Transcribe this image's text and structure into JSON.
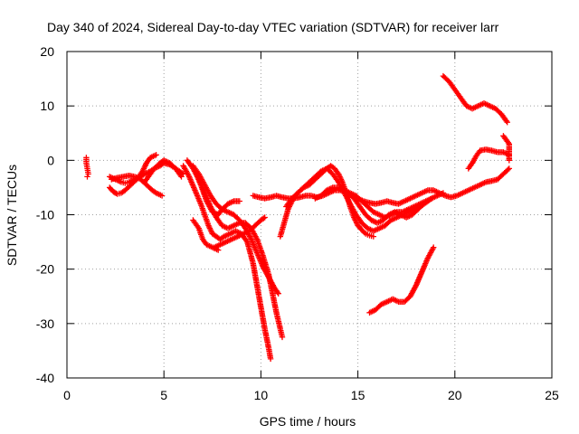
{
  "chart_data": {
    "type": "scatter",
    "title": "Day 340 of 2024, Sidereal Day-to-day VTEC variation (SDTVAR) for receiver larr",
    "xlabel": "GPS time / hours",
    "ylabel": "SDTVAR / TECUs",
    "xlim": [
      0,
      25
    ],
    "ylim": [
      -40,
      20
    ],
    "xticks": [
      "0",
      "5",
      "10",
      "15",
      "20",
      "25"
    ],
    "yticks": [
      "-40",
      "-30",
      "-20",
      "-10",
      "0",
      "10",
      "20"
    ],
    "grid": true,
    "legend": "none",
    "marker": "plus",
    "color": "#ff0000",
    "series": [
      {
        "x": [
          1.0,
          1.0,
          1.05,
          1.1,
          1.05
        ],
        "y": [
          0.5,
          -0.5,
          -1.5,
          -2.5,
          -3.0
        ]
      },
      {
        "x": [
          2.2,
          2.5,
          2.8,
          3.0,
          3.2,
          3.5,
          3.8,
          4.0,
          4.3,
          4.5,
          4.8,
          5.0,
          5.3,
          5.6,
          6.0
        ],
        "y": [
          -3.0,
          -3.5,
          -4.0,
          -4.2,
          -4.0,
          -3.5,
          -3.0,
          -2.5,
          -2.0,
          -1.5,
          -1.0,
          -0.5,
          -0.8,
          -1.5,
          -2.5
        ]
      },
      {
        "x": [
          2.2,
          2.4,
          2.6,
          2.8,
          3.0,
          3.3,
          3.6,
          3.9,
          4.1,
          4.3,
          4.6
        ],
        "y": [
          -5.0,
          -5.8,
          -6.2,
          -6.0,
          -5.5,
          -4.5,
          -3.5,
          -2.0,
          -0.5,
          0.5,
          1.0
        ]
      },
      {
        "x": [
          2.3,
          2.6,
          2.9,
          3.2,
          3.5,
          3.8,
          4.1,
          4.4,
          4.6,
          4.9
        ],
        "y": [
          -3.5,
          -3.2,
          -3.0,
          -2.8,
          -3.0,
          -3.5,
          -4.5,
          -5.5,
          -6.0,
          -6.5
        ]
      },
      {
        "x": [
          4.0,
          4.2,
          4.5,
          4.8,
          5.0,
          5.3,
          5.6,
          5.9
        ],
        "y": [
          -4.0,
          -3.0,
          -1.5,
          -0.5,
          0.0,
          -0.5,
          -1.5,
          -3.0
        ]
      },
      {
        "x": [
          6.0,
          6.3,
          6.6,
          6.9,
          7.1,
          7.3,
          7.5,
          7.7,
          7.9,
          8.1,
          8.4,
          8.7,
          9.0,
          9.3,
          9.6,
          9.8,
          10.0,
          10.2,
          10.4,
          10.5
        ],
        "y": [
          -1.0,
          -3.0,
          -5.5,
          -8.0,
          -10.0,
          -12.0,
          -13.5,
          -14.0,
          -14.5,
          -14.0,
          -13.5,
          -13.0,
          -13.5,
          -15.0,
          -19.0,
          -23.0,
          -27.0,
          -31.0,
          -34.5,
          -36.5
        ]
      },
      {
        "x": [
          6.2,
          6.5,
          6.8,
          7.1,
          7.4,
          7.7,
          8.0,
          8.3,
          8.6,
          8.9,
          9.2,
          9.5,
          9.8,
          10.1,
          10.4,
          10.6,
          10.8,
          11.0,
          11.1
        ],
        "y": [
          0.0,
          -1.5,
          -3.5,
          -6.0,
          -8.5,
          -10.5,
          -12.0,
          -12.5,
          -12.0,
          -11.5,
          -11.5,
          -12.5,
          -14.5,
          -17.5,
          -21.0,
          -24.5,
          -28.0,
          -31.0,
          -32.5
        ]
      },
      {
        "x": [
          6.5,
          6.8,
          7.1,
          7.4,
          7.7,
          8.0,
          8.3,
          8.6,
          8.9,
          9.2,
          9.5,
          9.8,
          10.1,
          10.4,
          10.7,
          10.9
        ],
        "y": [
          -1.0,
          -2.5,
          -4.5,
          -6.5,
          -8.0,
          -9.0,
          -9.5,
          -10.0,
          -11.0,
          -12.5,
          -14.5,
          -17.0,
          -19.5,
          -21.5,
          -23.5,
          -24.5
        ]
      },
      {
        "x": [
          6.6,
          6.9,
          7.2,
          7.5,
          7.8,
          8.0,
          8.3,
          8.6,
          8.9
        ],
        "y": [
          -2.0,
          -4.5,
          -7.5,
          -9.5,
          -10.0,
          -9.0,
          -8.0,
          -7.5,
          -7.5
        ]
      },
      {
        "x": [
          6.5,
          6.8,
          7.0,
          7.2,
          7.5,
          7.8
        ],
        "y": [
          -11.0,
          -12.5,
          -14.5,
          -15.5,
          -16.0,
          -16.5
        ]
      },
      {
        "x": [
          7.6,
          7.9,
          8.2,
          8.5,
          8.8,
          9.1,
          9.4,
          9.7,
          10.0,
          10.2
        ],
        "y": [
          -16.0,
          -15.5,
          -15.0,
          -14.5,
          -14.0,
          -13.5,
          -13.0,
          -12.0,
          -11.0,
          -10.5
        ]
      },
      {
        "x": [
          9.6,
          9.9,
          10.2,
          10.5,
          10.8,
          11.1,
          11.4,
          11.7,
          12.0,
          12.3,
          12.6,
          12.9,
          13.2,
          13.5,
          13.8,
          14.1,
          14.4,
          14.7,
          15.0,
          15.3,
          15.6,
          15.9,
          16.2,
          16.5,
          16.8,
          17.1,
          17.4,
          17.7,
          18.0,
          18.3,
          18.6,
          18.9,
          19.2,
          19.5,
          19.8,
          20.1,
          20.4,
          20.7,
          21.0,
          21.3,
          21.6,
          21.9,
          22.2,
          22.5,
          22.8
        ],
        "y": [
          -6.5,
          -6.8,
          -7.0,
          -6.8,
          -6.5,
          -6.8,
          -7.0,
          -7.0,
          -6.8,
          -6.5,
          -6.5,
          -6.8,
          -6.5,
          -6.0,
          -5.5,
          -5.5,
          -6.0,
          -6.5,
          -7.0,
          -7.5,
          -7.8,
          -8.0,
          -7.8,
          -7.5,
          -7.8,
          -8.0,
          -7.5,
          -7.0,
          -6.5,
          -6.0,
          -5.5,
          -5.5,
          -6.0,
          -6.5,
          -6.8,
          -6.5,
          -6.0,
          -5.5,
          -5.0,
          -4.5,
          -4.0,
          -3.8,
          -3.5,
          -2.5,
          -1.5
        ]
      },
      {
        "x": [
          11.0,
          11.2,
          11.4,
          11.6,
          11.9,
          12.2,
          12.5,
          12.8,
          13.1,
          13.4,
          13.6,
          13.8,
          14.0,
          14.2,
          14.4,
          14.6,
          14.8,
          15.0,
          15.2,
          15.4,
          15.6,
          15.8
        ],
        "y": [
          -14.0,
          -11.5,
          -9.0,
          -7.5,
          -6.0,
          -5.0,
          -4.5,
          -3.5,
          -2.5,
          -1.5,
          -1.0,
          -1.5,
          -2.5,
          -4.0,
          -6.0,
          -8.5,
          -10.5,
          -12.0,
          -12.8,
          -13.5,
          -13.8,
          -14.0
        ]
      },
      {
        "x": [
          11.3,
          11.6,
          11.9,
          12.2,
          12.5,
          12.8,
          13.1,
          13.4,
          13.7,
          14.0,
          14.3,
          14.6,
          14.9,
          15.2,
          15.5,
          15.8,
          16.1,
          16.4,
          16.7,
          17.0,
          17.3,
          17.6,
          17.9,
          18.2,
          18.5,
          18.8,
          19.1,
          19.4
        ],
        "y": [
          -8.5,
          -7.0,
          -6.0,
          -5.0,
          -4.0,
          -3.0,
          -2.0,
          -1.5,
          -2.5,
          -4.0,
          -6.0,
          -8.0,
          -10.0,
          -11.5,
          -12.5,
          -13.0,
          -12.5,
          -12.0,
          -11.0,
          -10.5,
          -10.0,
          -9.5,
          -9.0,
          -8.5,
          -7.8,
          -7.0,
          -6.5,
          -6.0
        ]
      },
      {
        "x": [
          12.8,
          13.1,
          13.4,
          13.7,
          14.0,
          14.3,
          14.6,
          14.9,
          15.2,
          15.5,
          15.8,
          16.1,
          16.4,
          16.7,
          17.0,
          17.3,
          17.6,
          17.9,
          18.2,
          18.5,
          18.8
        ],
        "y": [
          -7.0,
          -6.5,
          -5.5,
          -5.0,
          -5.0,
          -5.5,
          -6.0,
          -6.5,
          -7.5,
          -8.5,
          -9.5,
          -10.0,
          -10.5,
          -10.0,
          -9.5,
          -9.5,
          -9.0,
          -8.5,
          -8.0,
          -7.5,
          -7.0
        ]
      },
      {
        "x": [
          14.5,
          14.8,
          15.1,
          15.4,
          15.7,
          16.0,
          16.3,
          16.6,
          16.9,
          17.2,
          17.5,
          17.8,
          18.1,
          18.4
        ],
        "y": [
          -6.0,
          -7.0,
          -8.5,
          -10.0,
          -11.0,
          -11.5,
          -11.0,
          -10.0,
          -9.5,
          -10.0,
          -10.5,
          -10.0,
          -9.0,
          -8.0
        ]
      },
      {
        "x": [
          15.6,
          15.9,
          16.2,
          16.5,
          16.8,
          17.1,
          17.4,
          17.7,
          18.0,
          18.3,
          18.6,
          18.9
        ],
        "y": [
          -28.0,
          -27.5,
          -26.5,
          -26.0,
          -25.5,
          -26.0,
          -26.0,
          -25.0,
          -23.0,
          -20.5,
          -18.0,
          -16.0
        ]
      },
      {
        "x": [
          19.4,
          19.7,
          20.0,
          20.3,
          20.6,
          20.9,
          21.2,
          21.5,
          21.8,
          22.1,
          22.4,
          22.7
        ],
        "y": [
          15.5,
          14.5,
          13.0,
          11.5,
          10.0,
          9.5,
          10.0,
          10.5,
          10.0,
          9.5,
          8.5,
          7.0
        ]
      },
      {
        "x": [
          20.7,
          20.9,
          21.1,
          21.3,
          21.6,
          21.9,
          22.2,
          22.5,
          22.8
        ],
        "y": [
          -1.5,
          -0.5,
          0.8,
          1.8,
          2.0,
          1.8,
          1.5,
          1.5,
          1.0
        ]
      },
      {
        "x": [
          22.5,
          22.6,
          22.7,
          22.8,
          22.8
        ],
        "y": [
          4.5,
          4.0,
          3.5,
          3.0,
          0.0
        ]
      }
    ]
  }
}
